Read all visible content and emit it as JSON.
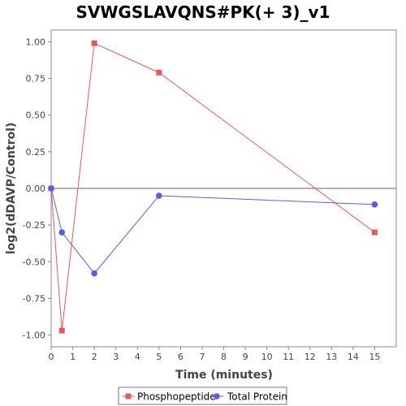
{
  "chart_data": {
    "type": "line",
    "title": "SVWGSLAVQNS#PK(+ 3)_v1",
    "xlabel": "Time (minutes)",
    "ylabel": "log2(dDAVP/Control)",
    "xlim": [
      0,
      16
    ],
    "ylim": [
      -1.08,
      1.08
    ],
    "x_ticks": [
      0,
      1,
      2,
      3,
      4,
      5,
      6,
      7,
      8,
      9,
      10,
      11,
      12,
      13,
      14,
      15
    ],
    "x_tick_labels": [
      "0",
      "1",
      "2",
      "3",
      "4",
      "5",
      "6",
      "7",
      "8",
      "9",
      "10",
      "11",
      "12",
      "13",
      "14",
      "15"
    ],
    "y_ticks": [
      1.0,
      0.75,
      0.5,
      0.25,
      0.0,
      -0.25,
      -0.5,
      -0.75,
      -1.0
    ],
    "y_tick_labels": [
      "1.00",
      "0.75",
      "0.50",
      "0.25",
      "0.00",
      "-0.25",
      "-0.50",
      "-0.75",
      "-1.00"
    ],
    "grid": false,
    "zero_line": true,
    "legend_position": "bottom",
    "series": [
      {
        "name": "Phosphopeptide",
        "color": "#e8585a",
        "marker": "square",
        "x": [
          0,
          0.5,
          2,
          5,
          15
        ],
        "y": [
          0.0,
          -0.97,
          0.99,
          0.79,
          -0.3
        ]
      },
      {
        "name": "Total Protein",
        "color": "#5b5bea",
        "marker": "circle",
        "x": [
          0,
          0.5,
          2,
          5,
          15
        ],
        "y": [
          0.0,
          -0.3,
          -0.58,
          -0.05,
          -0.11
        ]
      }
    ]
  }
}
